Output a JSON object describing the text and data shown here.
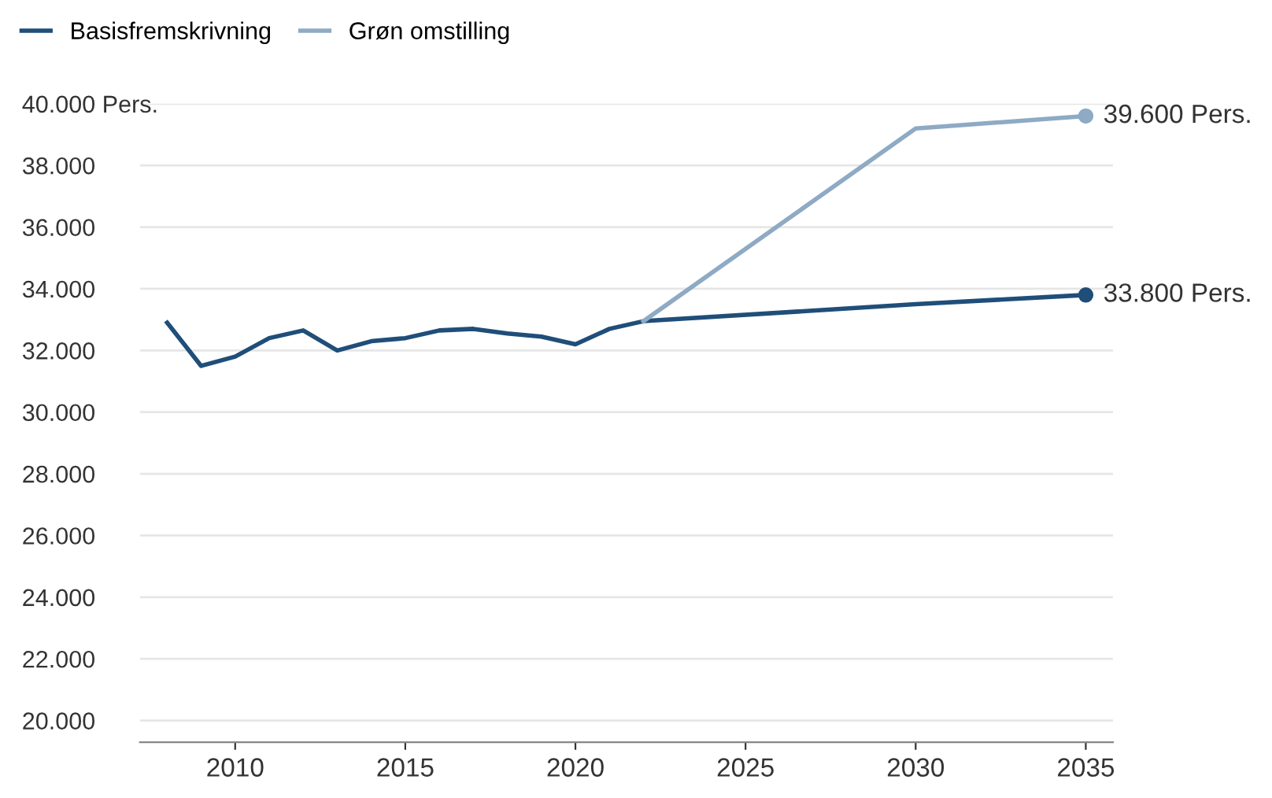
{
  "chart_data": {
    "type": "line",
    "x": [
      2008,
      2009,
      2010,
      2011,
      2012,
      2013,
      2014,
      2015,
      2016,
      2017,
      2018,
      2019,
      2020,
      2021,
      2022,
      2030,
      2035
    ],
    "series": [
      {
        "name": "Basisfremskrivning",
        "color": "#1f4e79",
        "values": [
          32900,
          31500,
          31800,
          32400,
          32650,
          32000,
          32300,
          32400,
          32650,
          32700,
          32550,
          32450,
          32200,
          32700,
          32950,
          33500,
          33800
        ]
      },
      {
        "name": "Grøn omstilling",
        "color": "#8eaac4",
        "x": [
          2022,
          2030,
          2035
        ],
        "values": [
          32950,
          39200,
          39600
        ]
      }
    ],
    "xlim": [
      2007.2,
      2035.8
    ],
    "xticks": [
      2010,
      2015,
      2020,
      2025,
      2030,
      2035
    ],
    "ylim": [
      19300,
      40000
    ],
    "yticks": [
      {
        "value": 20000,
        "label": "20.000"
      },
      {
        "value": 22000,
        "label": "22.000"
      },
      {
        "value": 24000,
        "label": "24.000"
      },
      {
        "value": 26000,
        "label": "26.000"
      },
      {
        "value": 28000,
        "label": "28.000"
      },
      {
        "value": 30000,
        "label": "30.000"
      },
      {
        "value": 32000,
        "label": "32.000"
      },
      {
        "value": 34000,
        "label": "34.000"
      },
      {
        "value": 36000,
        "label": "36.000"
      },
      {
        "value": 38000,
        "label": "38.000"
      },
      {
        "value": 40000,
        "label": "40.000 Pers."
      }
    ],
    "grid": "y",
    "legend": "top left",
    "line_style": "solid",
    "annotations": [
      {
        "text": "39.600 Pers.",
        "x": 2035,
        "y": 39600
      },
      {
        "text": "33.800 Pers.",
        "x": 2035,
        "y": 33800
      }
    ]
  }
}
